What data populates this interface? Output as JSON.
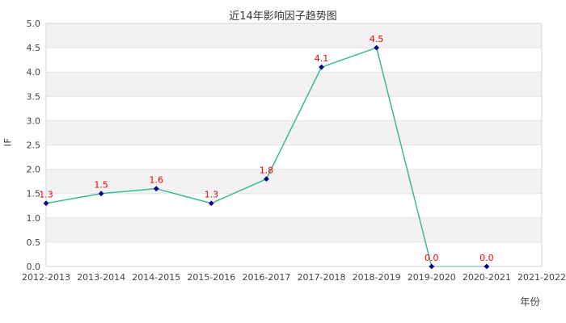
{
  "chart_data": {
    "type": "line",
    "title": "近14年影响因子趋势图",
    "xlabel": "年份",
    "ylabel": "IF",
    "categories": [
      "2012-2013",
      "2013-2014",
      "2014-2015",
      "2015-2016",
      "2016-2017",
      "2017-2018",
      "2018-2019",
      "2019-2020",
      "2020-2021",
      "2021-2022"
    ],
    "values": [
      1.3,
      1.5,
      1.6,
      1.3,
      1.8,
      4.1,
      4.5,
      0.0,
      0.0,
      null
    ],
    "data_labels": [
      "1.3",
      "1.5",
      "1.6",
      "1.3",
      "1.8",
      "4.1",
      "4.5",
      "0.0",
      "0.0"
    ],
    "ylim": [
      0,
      5
    ],
    "ytick_step": 0.5,
    "ytick_labels": [
      "0.0",
      "0.5",
      "1.0",
      "1.5",
      "2.0",
      "2.5",
      "3.0",
      "3.5",
      "4.0",
      "4.5",
      "5.0"
    ],
    "grid": true,
    "alternating_bands": true,
    "legend": "none",
    "colors": {
      "line": "#3bb998",
      "marker": "#00008b",
      "data_label": "#ee0000",
      "band": "#f2f2f2",
      "grid": "#e4e4e4",
      "border": "#d6d6d6",
      "tick_text": "#444444",
      "title_text": "#333333",
      "background": "#ffffff"
    }
  }
}
